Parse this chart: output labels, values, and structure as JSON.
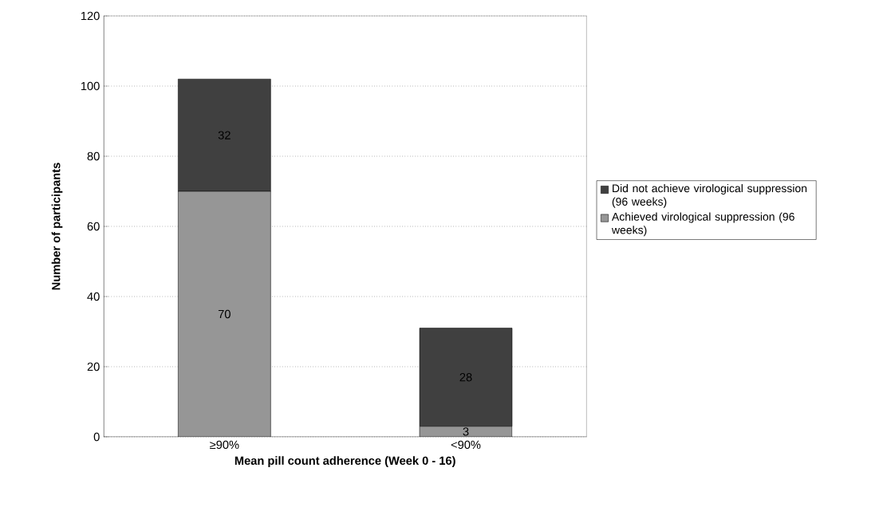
{
  "chart_data": {
    "type": "bar",
    "stacked": true,
    "xlabel": "Mean pill count adherence (Week 0 - 16)",
    "ylabel": "Number of participants",
    "categories": [
      "≥90%",
      "<90%"
    ],
    "series": [
      {
        "name": "Achieved virological suppression (96 weeks)",
        "color": "#969696",
        "values": [
          70,
          3
        ]
      },
      {
        "name": "Did not achieve virological suppression (96 weeks)",
        "color": "#404040",
        "values": [
          32,
          28
        ]
      }
    ],
    "ylim": [
      0,
      120
    ],
    "yticks": [
      0,
      20,
      40,
      60,
      80,
      100,
      120
    ],
    "grid": "y",
    "legend": "right",
    "data_labels": true
  }
}
